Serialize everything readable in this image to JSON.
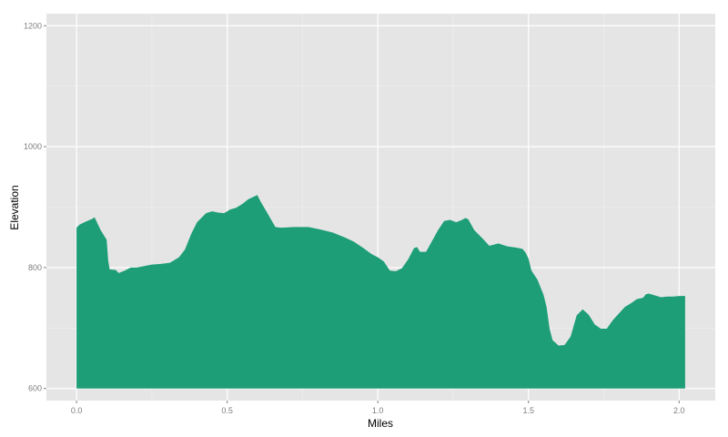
{
  "chart_data": {
    "type": "area",
    "title": "",
    "xlabel": "Miles",
    "ylabel": "Elevation",
    "xlim": [
      -0.1,
      2.12
    ],
    "ylim": [
      580,
      1220
    ],
    "area_baseline": 600,
    "x_ticks": [
      {
        "value": 0.0,
        "label": "0.0"
      },
      {
        "value": 0.5,
        "label": "0.5"
      },
      {
        "value": 1.0,
        "label": "1.0"
      },
      {
        "value": 1.5,
        "label": "1.5"
      },
      {
        "value": 2.0,
        "label": "2.0"
      }
    ],
    "y_ticks": [
      {
        "value": 600,
        "label": "600"
      },
      {
        "value": 800,
        "label": "800"
      },
      {
        "value": 1000,
        "label": "1000"
      },
      {
        "value": 1200,
        "label": "1200"
      }
    ],
    "grid": true,
    "legend": "none",
    "colors": {
      "panel_background": "#e5e5e5",
      "grid_major": "#ffffff",
      "grid_minor": "#f2f2f2",
      "fill": "#1d9e77",
      "tick_label": "#7f7f7f",
      "axis_title": "#000000"
    },
    "series": [
      {
        "x": [
          0.0,
          0.01,
          0.03,
          0.05,
          0.06,
          0.08,
          0.1,
          0.105,
          0.11,
          0.13,
          0.14,
          0.16,
          0.18,
          0.2,
          0.23,
          0.25,
          0.28,
          0.31,
          0.34,
          0.36,
          0.38,
          0.4,
          0.43,
          0.45,
          0.47,
          0.49,
          0.51,
          0.53,
          0.55,
          0.57,
          0.6,
          0.61,
          0.63,
          0.66,
          0.68,
          0.72,
          0.77,
          0.81,
          0.85,
          0.89,
          0.92,
          0.95,
          0.98,
          1.0,
          1.02,
          1.04,
          1.06,
          1.08,
          1.1,
          1.12,
          1.13,
          1.14,
          1.16,
          1.18,
          1.2,
          1.22,
          1.24,
          1.26,
          1.28,
          1.29,
          1.3,
          1.32,
          1.35,
          1.37,
          1.4,
          1.43,
          1.46,
          1.48,
          1.49,
          1.5,
          1.51,
          1.53,
          1.55,
          1.56,
          1.57,
          1.58,
          1.6,
          1.62,
          1.64,
          1.66,
          1.68,
          1.7,
          1.72,
          1.74,
          1.76,
          1.78,
          1.8,
          1.82,
          1.84,
          1.86,
          1.88,
          1.89,
          1.9,
          1.92,
          1.94,
          1.96,
          1.98,
          2.0,
          2.02
        ],
        "y": [
          866,
          871,
          876,
          880,
          883,
          862,
          846,
          812,
          797,
          796,
          791,
          795,
          800,
          800,
          803,
          805,
          806,
          808,
          817,
          830,
          855,
          875,
          890,
          893,
          891,
          890,
          896,
          899,
          905,
          913,
          920,
          910,
          893,
          867,
          866,
          867,
          867,
          863,
          858,
          850,
          843,
          833,
          822,
          817,
          810,
          795,
          794,
          799,
          813,
          832,
          834,
          826,
          826,
          844,
          862,
          877,
          879,
          875,
          879,
          882,
          880,
          862,
          847,
          836,
          840,
          835,
          833,
          831,
          825,
          815,
          795,
          780,
          755,
          735,
          699,
          680,
          671,
          672,
          686,
          721,
          731,
          722,
          706,
          699,
          699,
          713,
          724,
          735,
          741,
          748,
          750,
          756,
          757,
          754,
          751,
          752,
          752,
          753,
          753
        ]
      }
    ]
  }
}
